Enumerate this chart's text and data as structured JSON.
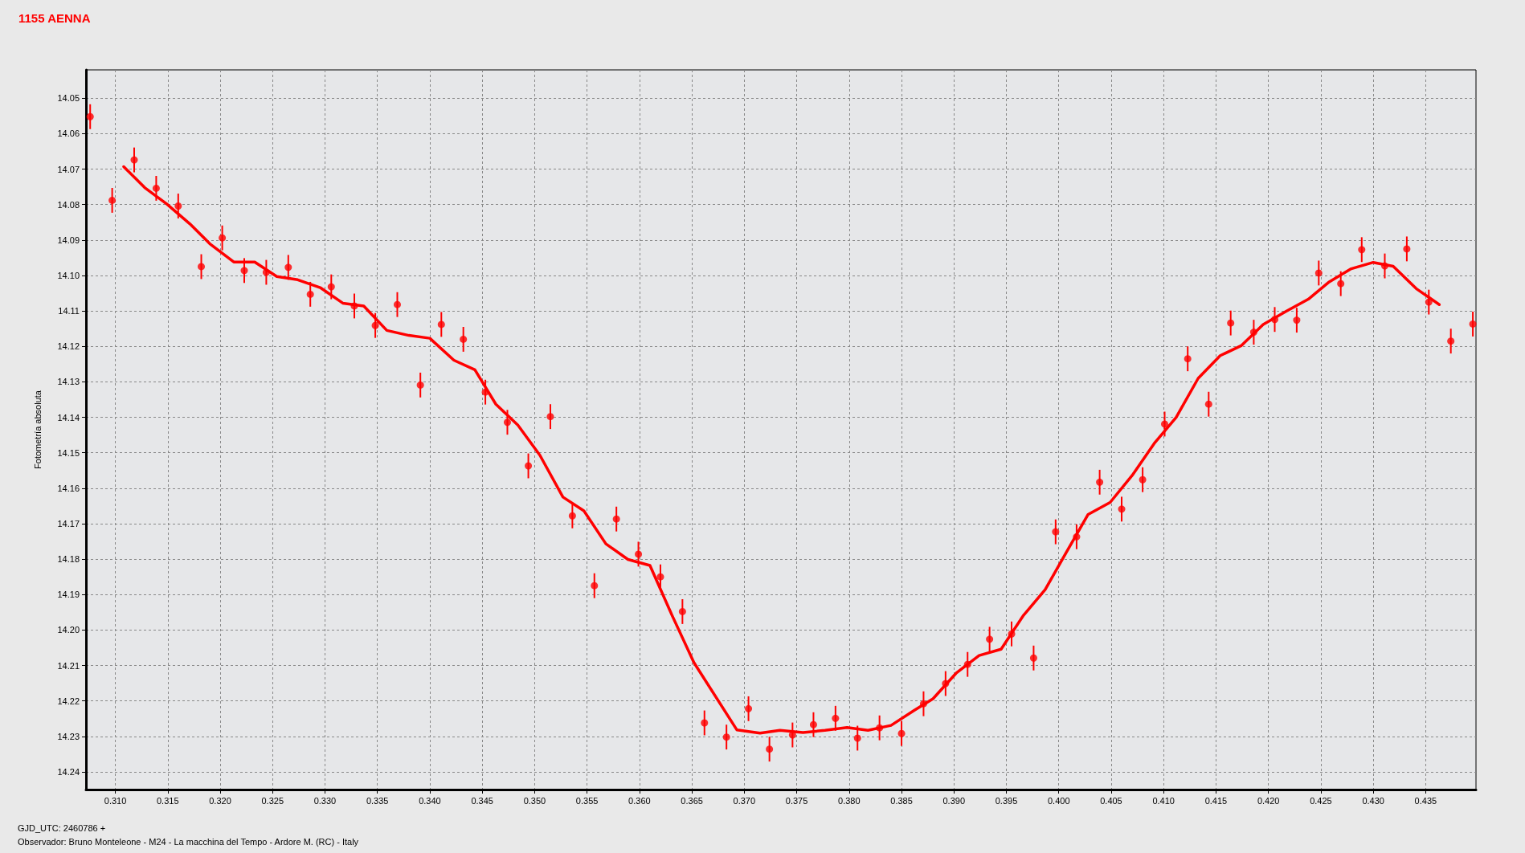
{
  "chart_data": {
    "type": "scatter",
    "title": "1155 AENNA",
    "ylabel": "Fotometría absoluta",
    "annotations": [
      "GJD_UTC: 2460786 +",
      "Observador: Bruno Monteleone - M24 - La macchina del Tempo - Ardore M. (RC) - Italy"
    ],
    "xlim": [
      0.3072,
      0.4398
    ],
    "xticks": [
      {
        "value": 0.31,
        "label": "0.310"
      },
      {
        "value": 0.315,
        "label": "0.315"
      },
      {
        "value": 0.32,
        "label": "0.320"
      },
      {
        "value": 0.325,
        "label": "0.325"
      },
      {
        "value": 0.33,
        "label": "0.330"
      },
      {
        "value": 0.335,
        "label": "0.335"
      },
      {
        "value": 0.34,
        "label": "0.340"
      },
      {
        "value": 0.345,
        "label": "0.345"
      },
      {
        "value": 0.35,
        "label": "0.350"
      },
      {
        "value": 0.355,
        "label": "0.355"
      },
      {
        "value": 0.36,
        "label": "0.360"
      },
      {
        "value": 0.365,
        "label": "0.365"
      },
      {
        "value": 0.37,
        "label": "0.370"
      },
      {
        "value": 0.375,
        "label": "0.375"
      },
      {
        "value": 0.38,
        "label": "0.380"
      },
      {
        "value": 0.385,
        "label": "0.385"
      },
      {
        "value": 0.39,
        "label": "0.390"
      },
      {
        "value": 0.395,
        "label": "0.395"
      },
      {
        "value": 0.4,
        "label": "0.400"
      },
      {
        "value": 0.405,
        "label": "0.405"
      },
      {
        "value": 0.41,
        "label": "0.410"
      },
      {
        "value": 0.415,
        "label": "0.415"
      },
      {
        "value": 0.42,
        "label": "0.420"
      },
      {
        "value": 0.425,
        "label": "0.425"
      },
      {
        "value": 0.43,
        "label": "0.430"
      },
      {
        "value": 0.435,
        "label": "0.435"
      }
    ],
    "ylim": [
      14.245,
      14.042
    ],
    "yticks": [
      14.05,
      14.06,
      14.07,
      14.08,
      14.09,
      {
        "value": 14.1,
        "label": "14.10"
      },
      14.11,
      14.12,
      14.13,
      14.14,
      14.15,
      14.16,
      14.17,
      14.18,
      14.19,
      {
        "value": 14.2,
        "label": "14.20"
      },
      14.21,
      14.22,
      14.23,
      14.24
    ],
    "grid": true,
    "marker": "circle",
    "series": [
      {
        "color": "#ff0000",
        "x": [
          0.3076,
          0.3097,
          0.3118,
          0.3139,
          0.316,
          0.3182,
          0.3202,
          0.3223,
          0.3244,
          0.3265,
          0.3286,
          0.3306,
          0.3328,
          0.3348,
          0.3369,
          0.3391,
          0.3411,
          0.3432,
          0.3453,
          0.3474,
          0.3494,
          0.3515,
          0.3536,
          0.3557,
          0.3578,
          0.3599,
          0.362,
          0.3641,
          0.3662,
          0.3683,
          0.3704,
          0.3724,
          0.3746,
          0.3766,
          0.3787,
          0.3808,
          0.3829,
          0.385,
          0.3871,
          0.3892,
          0.3913,
          0.3934,
          0.3955,
          0.3976,
          0.3997,
          0.4017,
          0.4039,
          0.406,
          0.408,
          0.4101,
          0.4123,
          0.4143,
          0.4164,
          0.4186,
          0.4206,
          0.4227,
          0.4248,
          0.4269,
          0.4289,
          0.4311,
          0.4332,
          0.4353,
          0.4374,
          0.4395
        ],
        "values": [
          14.0552,
          14.0788,
          14.0674,
          14.0754,
          14.0804,
          14.0975,
          14.0894,
          14.0986,
          14.0991,
          14.0977,
          14.1053,
          14.1032,
          14.1086,
          14.1141,
          14.1082,
          14.1309,
          14.1138,
          14.118,
          14.1329,
          14.1414,
          14.1537,
          14.1398,
          14.1678,
          14.1875,
          14.1687,
          14.1786,
          14.185,
          14.1948,
          14.2262,
          14.2302,
          14.2222,
          14.2336,
          14.2296,
          14.2267,
          14.2249,
          14.2305,
          14.2276,
          14.2292,
          14.2208,
          14.2151,
          14.2097,
          14.2026,
          14.2011,
          14.2079,
          14.1723,
          14.1737,
          14.1583,
          14.1659,
          14.1576,
          14.1419,
          14.1235,
          14.1363,
          14.1134,
          14.116,
          14.1124,
          14.1126,
          14.0993,
          14.1023,
          14.0927,
          14.0973,
          14.0925,
          14.1075,
          14.1185,
          14.1137
        ],
        "errors": [
          0.0035,
          0.0035,
          0.0035,
          0.0035,
          0.0035,
          0.0035,
          0.0035,
          0.0035,
          0.0035,
          0.0035,
          0.0035,
          0.0035,
          0.0035,
          0.0035,
          0.0035,
          0.0035,
          0.0035,
          0.0035,
          0.0035,
          0.0035,
          0.0035,
          0.0035,
          0.0035,
          0.0035,
          0.0035,
          0.0035,
          0.0035,
          0.0035,
          0.0035,
          0.0035,
          0.0035,
          0.0035,
          0.0035,
          0.0035,
          0.0035,
          0.0035,
          0.0035,
          0.0035,
          0.0035,
          0.0035,
          0.0035,
          0.0035,
          0.0035,
          0.0035,
          0.0035,
          0.0035,
          0.0035,
          0.0035,
          0.0035,
          0.0035,
          0.0035,
          0.0035,
          0.0035,
          0.0035,
          0.0035,
          0.0035,
          0.0035,
          0.0035,
          0.0035,
          0.0035,
          0.0035,
          0.0035,
          0.0035,
          0.0035
        ]
      },
      {
        "type": "line",
        "color": "#ff0000",
        "marker": "none",
        "line_style": "solid",
        "x": [
          0.3108,
          0.3128,
          0.3149,
          0.3171,
          0.319,
          0.3213,
          0.3233,
          0.3254,
          0.3274,
          0.3296,
          0.3317,
          0.3337,
          0.3359,
          0.338,
          0.34,
          0.3423,
          0.3443,
          0.3463,
          0.3484,
          0.3505,
          0.3527,
          0.3547,
          0.3568,
          0.3589,
          0.361,
          0.3631,
          0.3652,
          0.3693,
          0.3715,
          0.3734,
          0.3756,
          0.3777,
          0.3798,
          0.3818,
          0.384,
          0.3862,
          0.388,
          0.3902,
          0.3924,
          0.3945,
          0.3966,
          0.3987,
          0.4007,
          0.4028,
          0.4049,
          0.407,
          0.4091,
          0.4112,
          0.4133,
          0.4154,
          0.4174,
          0.4195,
          0.4217,
          0.4238,
          0.4258,
          0.4279,
          0.43,
          0.4319,
          0.4341,
          0.4363
        ],
        "values": [
          14.0693,
          14.0752,
          14.0798,
          14.0854,
          14.091,
          14.0962,
          14.0962,
          14.1003,
          14.1012,
          14.1035,
          14.1078,
          14.1086,
          14.1155,
          14.1169,
          14.1177,
          14.1239,
          14.1266,
          14.1363,
          14.1422,
          14.1507,
          14.1625,
          14.1664,
          14.1757,
          14.1801,
          14.1818,
          14.1958,
          14.2092,
          14.2282,
          14.2291,
          14.2283,
          14.2289,
          14.2283,
          14.2275,
          14.2283,
          14.2269,
          14.2227,
          14.2194,
          14.2122,
          14.2072,
          14.2054,
          14.196,
          14.1886,
          14.1782,
          14.1674,
          14.164,
          14.1564,
          14.1474,
          14.14,
          14.129,
          14.1226,
          14.1198,
          14.1138,
          14.1101,
          14.1067,
          14.1018,
          14.0981,
          14.0963,
          14.0974,
          14.1037,
          14.1082
        ]
      }
    ]
  }
}
